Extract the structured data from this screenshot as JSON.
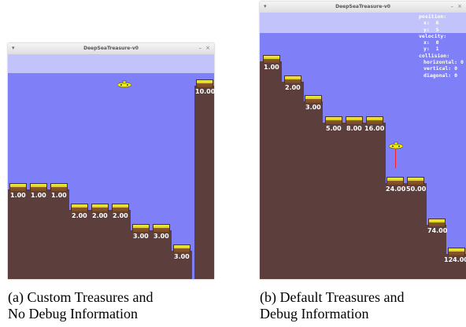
{
  "colors": {
    "sky": "#7f7ff8",
    "sky_top": "#c3c3fb",
    "seafloor": "#5c3f3d",
    "submarine": "#f3f000",
    "tether": "#ff2020"
  },
  "panel_a": {
    "window_title": "DeepSeaTreasure-v0",
    "menu_icon": "chevron-down-icon",
    "minimize_label": "–",
    "close_label": "×",
    "treasures": [
      "1.00",
      "1.00",
      "1.00",
      "2.00",
      "2.00",
      "2.00",
      "3.00",
      "3.00",
      "3.00",
      "10.00"
    ],
    "caption_line1": "(a) Custom Treasures and",
    "caption_line2": "No Debug Information"
  },
  "panel_b": {
    "window_title": "DeepSeaTreasure-v0",
    "menu_icon": "chevron-down-icon",
    "minimize_label": "–",
    "close_label": "×",
    "treasures": [
      "1.00",
      "2.00",
      "3.00",
      "5.00",
      "8.00",
      "16.00",
      "24.00",
      "50.00",
      "74.00",
      "124.00"
    ],
    "debug": {
      "position_label": "position:",
      "position_x": "x:  6",
      "position_y": "y:  5",
      "velocity_label": "velocity:",
      "velocity_x": "x:  0",
      "velocity_y": "y:  1",
      "collision_label": "collision:",
      "collision_horizontal": "horizontal: 0",
      "collision_vertical": "vertical: 0",
      "collision_diagonal": "diagonal: 0"
    },
    "caption_line1": "(b) Default Treasures and",
    "caption_line2": "Debug Information"
  }
}
